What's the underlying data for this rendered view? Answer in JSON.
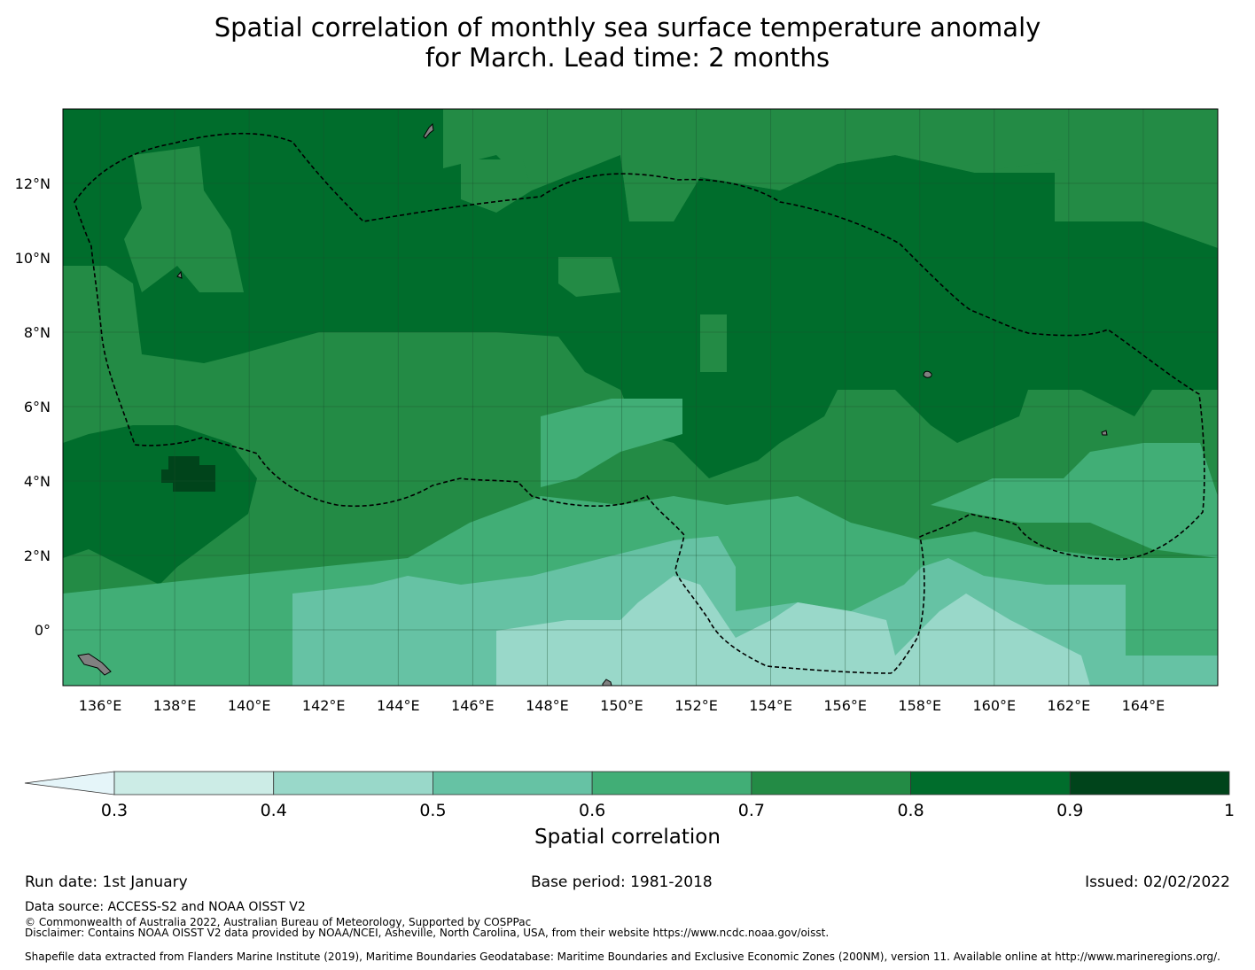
{
  "title_line1": "Spatial correlation of monthly sea surface temperature anomaly",
  "title_line2": "for March. Lead time: 2 months",
  "map": {
    "lon_range": [
      135,
      166
    ],
    "lat_range": [
      -1.5,
      14
    ],
    "lon_ticks": [
      "136°E",
      "138°E",
      "140°E",
      "142°E",
      "144°E",
      "146°E",
      "148°E",
      "150°E",
      "152°E",
      "154°E",
      "156°E",
      "158°E",
      "160°E",
      "162°E",
      "164°E"
    ],
    "lat_ticks": [
      "12°N",
      "10°N",
      "8°N",
      "6°N",
      "4°N",
      "2°N",
      "0°"
    ],
    "gridlines": true,
    "land_color": "#808080",
    "boundary_style": "dashed"
  },
  "colorbar": {
    "label": "Spatial correlation",
    "ticks": [
      "0.3",
      "0.4",
      "0.5",
      "0.6",
      "0.7",
      "0.8",
      "0.9",
      "1"
    ],
    "colors": [
      "#ccece6",
      "#99d8c9",
      "#66c2a4",
      "#41ae76",
      "#238b45",
      "#006d2c",
      "#00441b"
    ],
    "under_color": "#e5f5f9"
  },
  "footer": {
    "run_date": "Run date: 1st January",
    "base_period": "Base period: 1981-2018",
    "issued": "Issued: 02/02/2022",
    "data_source": "Data source: ACCESS-S2 and NOAA OISST V2",
    "copyright": "© Commonwealth of Australia 2022, Australian Bureau of Meteorology, Supported by COSPPac",
    "disclaimer": "Disclaimer: Contains NOAA OISST V2 data provided by NOAA/NCEI, Asheville, North Carolina, USA, from their website https://www.ncdc.noaa.gov/oisst.",
    "shapefile": "Shapefile data extracted from Flanders Marine Institute (2019), Maritime Boundaries Geodatabase: Maritime Boundaries and Exclusive Economic Zones (200NM), version 11. Available online at http://www.marineregions.org/."
  }
}
